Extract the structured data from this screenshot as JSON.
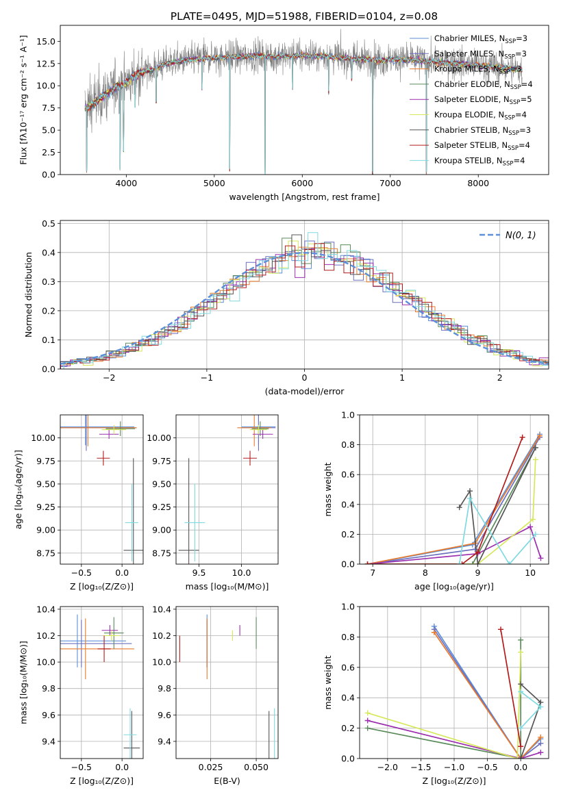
{
  "figure": {
    "title": "PLATE=0495, MJD=51988, FIBERID=0104, z=0.08"
  },
  "colors": {
    "Chabrier MILES": "#5b8fd9",
    "Salpeter MILES": "#6a6fc0",
    "Kroupa MILES": "#ea7a2c",
    "Chabrier ELODIE": "#5a8a5a",
    "Salpeter ELODIE": "#9b2fae",
    "Kroupa ELODIE": "#d6e85a",
    "Chabrier STELIB": "#555555",
    "Salpeter STELIB": "#b31b1b",
    "Kroupa STELIB": "#7fd9e0",
    "data": "#7f7f7f",
    "normal": "#5b8fd9",
    "grid": "#b0b0b0"
  },
  "chart_data": [
    {
      "id": "spectrum",
      "type": "line",
      "xlabel": "wavelength [Angstrom, rest frame]",
      "ylabel": "Flux [fλ10⁻¹⁷ erg cm⁻² s⁻¹ A⁻¹]",
      "xlim": [
        3250,
        8800
      ],
      "ylim": [
        0,
        16.8
      ],
      "xticks": [
        4000,
        5000,
        6000,
        7000,
        8000
      ],
      "yticks": [
        0.0,
        2.5,
        5.0,
        7.5,
        10.0,
        12.5,
        15.0
      ],
      "grid": false,
      "legend_position": "right",
      "legend": [
        {
          "model": "Chabrier MILES",
          "label": "Chabrier MILES, N",
          "sub": "SSP",
          "n": "=3"
        },
        {
          "model": "Salpeter MILES",
          "label": "Salpeter MILES, N",
          "sub": "SSP",
          "n": "=3"
        },
        {
          "model": "Kroupa MILES",
          "label": "Kroupa MILES, N",
          "sub": "SSP",
          "n": "=3"
        },
        {
          "model": "Chabrier ELODIE",
          "label": "Chabrier ELODIE, N",
          "sub": "SSP",
          "n": "=4"
        },
        {
          "model": "Salpeter ELODIE",
          "label": "Salpeter ELODIE, N",
          "sub": "SSP",
          "n": "=5"
        },
        {
          "model": "Kroupa ELODIE",
          "label": "Kroupa ELODIE, N",
          "sub": "SSP",
          "n": "=4"
        },
        {
          "model": "Chabrier STELIB",
          "label": "Chabrier STELIB, N",
          "sub": "SSP",
          "n": "=3"
        },
        {
          "model": "Salpeter STELIB",
          "label": "Salpeter STELIB, N",
          "sub": "SSP",
          "n": "=4"
        },
        {
          "model": "Kroupa STELIB",
          "label": "Kroupa STELIB, N",
          "sub": "SSP",
          "n": "=4"
        }
      ],
      "continuum": [
        [
          3530,
          7.5
        ],
        [
          3600,
          7.8
        ],
        [
          3700,
          8.6
        ],
        [
          3800,
          9.2
        ],
        [
          3900,
          10.0
        ],
        [
          4000,
          10.3
        ],
        [
          4100,
          11.2
        ],
        [
          4200,
          11.6
        ],
        [
          4300,
          11.8
        ],
        [
          4400,
          12.3
        ],
        [
          4500,
          12.6
        ],
        [
          4700,
          12.9
        ],
        [
          4900,
          13.1
        ],
        [
          5100,
          13.2
        ],
        [
          5300,
          13.3
        ],
        [
          5500,
          13.4
        ],
        [
          5700,
          13.3
        ],
        [
          5900,
          13.4
        ],
        [
          6100,
          13.4
        ],
        [
          6300,
          13.3
        ],
        [
          6500,
          13.1
        ],
        [
          6700,
          13.0
        ],
        [
          6900,
          12.9
        ],
        [
          7100,
          13.0
        ],
        [
          7300,
          12.9
        ],
        [
          7500,
          12.7
        ],
        [
          7800,
          12.5
        ],
        [
          8100,
          12.2
        ],
        [
          8400,
          11.9
        ],
        [
          8500,
          11.8
        ]
      ],
      "dips": [
        [
          3550,
          0.2
        ],
        [
          3930,
          0.5
        ],
        [
          3968,
          2.5
        ],
        [
          4102,
          7.5
        ],
        [
          4340,
          8.0
        ],
        [
          4861,
          9.5
        ],
        [
          5175,
          0.3
        ],
        [
          5577,
          0.0
        ],
        [
          5890,
          9.5
        ],
        [
          6300,
          9.0
        ],
        [
          6563,
          10.5
        ],
        [
          6800,
          0.0
        ],
        [
          7410,
          0.0
        ]
      ]
    },
    {
      "id": "residuals",
      "type": "line",
      "xlabel": "(data-model)/error",
      "ylabel": "Normed distribution",
      "xlim": [
        -2.5,
        2.5
      ],
      "ylim": [
        0,
        0.51
      ],
      "xticks": [
        -2,
        -1,
        0,
        1,
        2
      ],
      "yticks": [
        0.0,
        0.1,
        0.2,
        0.3,
        0.4,
        0.5
      ],
      "grid": true,
      "legend_position": "top-right",
      "legend_label": "N(0, 1)"
    },
    {
      "id": "age-vs-Z",
      "type": "scatter",
      "xlabel": "Z [log₁₀(Z/Z⊙)]",
      "ylabel": "age  [log₁₀(age/yr)]",
      "xlim": [
        -0.76,
        0.26
      ],
      "ylim": [
        8.63,
        10.25
      ],
      "xticks": [
        -0.5,
        0.0
      ],
      "yticks": [
        8.75,
        9.0,
        9.25,
        9.5,
        9.75,
        10.0
      ],
      "grid": true,
      "points": [
        {
          "model": "Chabrier MILES",
          "x": -0.45,
          "y": 10.12,
          "xerr": 0.6,
          "yerr": 0.2
        },
        {
          "model": "Salpeter MILES",
          "x": -0.44,
          "y": 10.11,
          "xerr": 0.62,
          "yerr": 0.25
        },
        {
          "model": "Kroupa MILES",
          "x": -0.42,
          "y": 10.11,
          "xerr": 0.6,
          "yerr": 0.2
        },
        {
          "model": "Chabrier ELODIE",
          "x": -0.02,
          "y": 10.1,
          "xerr": 0.18,
          "yerr": 0.08
        },
        {
          "model": "Salpeter ELODIE",
          "x": -0.16,
          "y": 10.04,
          "xerr": 0.12,
          "yerr": 0.05
        },
        {
          "model": "Kroupa ELODIE",
          "x": -0.1,
          "y": 10.09,
          "xerr": 0.15,
          "yerr": 0.05
        },
        {
          "model": "Chabrier STELIB",
          "x": 0.14,
          "y": 8.78,
          "xerr": 0.12,
          "yerr": 1.0
        },
        {
          "model": "Salpeter STELIB",
          "x": -0.23,
          "y": 9.78,
          "xerr": 0.08,
          "yerr": 0.08
        },
        {
          "model": "Kroupa STELIB",
          "x": 0.12,
          "y": 9.08,
          "xerr": 0.08,
          "yerr": 0.42
        }
      ]
    },
    {
      "id": "age-vs-mass",
      "type": "scatter",
      "xlabel": "mass [log₁₀(M/M⊙)]",
      "ylabel": "",
      "xlim": [
        9.23,
        10.43
      ],
      "ylim": [
        8.63,
        10.25
      ],
      "xticks": [
        9.5,
        10.0
      ],
      "yticks": [
        8.75,
        9.0,
        9.25,
        9.5,
        9.75,
        10.0
      ],
      "grid": true,
      "points": [
        {
          "model": "Chabrier MILES",
          "x": 10.2,
          "y": 10.12,
          "xerr": 0.2,
          "yerr": 0.2
        },
        {
          "model": "Salpeter MILES",
          "x": 10.2,
          "y": 10.11,
          "xerr": 0.2,
          "yerr": 0.25
        },
        {
          "model": "Kroupa MILES",
          "x": 10.15,
          "y": 10.11,
          "xerr": 0.2,
          "yerr": 0.2
        },
        {
          "model": "Chabrier ELODIE",
          "x": 10.22,
          "y": 10.1,
          "xerr": 0.1,
          "yerr": 0.08
        },
        {
          "model": "Salpeter ELODIE",
          "x": 10.25,
          "y": 10.04,
          "xerr": 0.12,
          "yerr": 0.05
        },
        {
          "model": "Kroupa ELODIE",
          "x": 10.2,
          "y": 10.09,
          "xerr": 0.1,
          "yerr": 0.05
        },
        {
          "model": "Chabrier STELIB",
          "x": 9.38,
          "y": 8.78,
          "xerr": 0.12,
          "yerr": 1.0
        },
        {
          "model": "Salpeter STELIB",
          "x": 10.1,
          "y": 9.78,
          "xerr": 0.08,
          "yerr": 0.08
        },
        {
          "model": "Kroupa STELIB",
          "x": 9.45,
          "y": 9.08,
          "xerr": 0.12,
          "yerr": 0.42
        }
      ]
    },
    {
      "id": "weight-vs-age",
      "type": "line",
      "xlabel": "age  [log₁₀(age/yr)]",
      "ylabel": "mass weight",
      "xlim": [
        6.75,
        10.35
      ],
      "ylim": [
        0,
        1.0
      ],
      "xticks": [
        7,
        8,
        9,
        10
      ],
      "yticks": [
        0.0,
        0.2,
        0.4,
        0.6,
        0.8,
        1.0
      ],
      "grid": true,
      "series": [
        {
          "model": "Chabrier MILES",
          "x": [
            6.9,
            8.9,
            10.18
          ],
          "y": [
            0.0,
            0.13,
            0.87
          ]
        },
        {
          "model": "Salpeter MILES",
          "x": [
            6.9,
            8.95,
            10.18
          ],
          "y": [
            0.0,
            0.1,
            0.85
          ]
        },
        {
          "model": "Kroupa MILES",
          "x": [
            6.9,
            8.95,
            10.18
          ],
          "y": [
            0.0,
            0.14,
            0.86
          ]
        },
        {
          "model": "Chabrier ELODIE",
          "x": [
            6.9,
            8.9,
            10.1
          ],
          "y": [
            0.0,
            0.0,
            0.78
          ]
        },
        {
          "model": "Salpeter ELODIE",
          "x": [
            6.9,
            9.0,
            10.0,
            10.2
          ],
          "y": [
            0.0,
            0.07,
            0.25,
            0.04
          ]
        },
        {
          "model": "Kroupa ELODIE",
          "x": [
            6.9,
            9.0,
            10.05,
            10.1
          ],
          "y": [
            0.0,
            0.0,
            0.3,
            0.7
          ]
        },
        {
          "model": "Chabrier STELIB",
          "x": [
            8.65,
            8.85,
            9.0,
            10.1
          ],
          "y": [
            0.38,
            0.49,
            0.0,
            0.78
          ]
        },
        {
          "model": "Salpeter STELIB",
          "x": [
            6.9,
            8.7,
            9.0,
            9.85
          ],
          "y": [
            0.0,
            0.0,
            0.08,
            0.85
          ]
        },
        {
          "model": "Kroupa STELIB",
          "x": [
            8.65,
            8.85,
            9.6,
            10.1
          ],
          "y": [
            0.0,
            0.44,
            0.0,
            0.2
          ]
        }
      ]
    },
    {
      "id": "mass-vs-Z",
      "type": "scatter",
      "xlabel": "Z [log₁₀(Z/Z⊙)]",
      "ylabel": "mass [log₁₀(M/M⊙)]",
      "xlim": [
        -0.76,
        0.26
      ],
      "ylim": [
        9.27,
        10.42
      ],
      "xticks": [
        -0.5,
        0.0
      ],
      "yticks": [
        9.4,
        9.6,
        9.8,
        10.0,
        10.2,
        10.4
      ],
      "grid": true,
      "points": [
        {
          "model": "Chabrier MILES",
          "x": -0.55,
          "y": 10.16,
          "xerr": 0.6,
          "yerr": 0.2
        },
        {
          "model": "Salpeter MILES",
          "x": -0.5,
          "y": 10.14,
          "xerr": 0.62,
          "yerr": 0.18
        },
        {
          "model": "Kroupa MILES",
          "x": -0.45,
          "y": 10.1,
          "xerr": 0.6,
          "yerr": 0.23
        },
        {
          "model": "Chabrier ELODIE",
          "x": -0.1,
          "y": 10.22,
          "xerr": 0.12,
          "yerr": 0.12
        },
        {
          "model": "Salpeter ELODIE",
          "x": -0.15,
          "y": 10.24,
          "xerr": 0.1,
          "yerr": 0.04
        },
        {
          "model": "Kroupa ELODIE",
          "x": -0.13,
          "y": 10.2,
          "xerr": 0.1,
          "yerr": 0.04
        },
        {
          "model": "Chabrier STELIB",
          "x": 0.12,
          "y": 9.35,
          "xerr": 0.1,
          "yerr": 0.28
        },
        {
          "model": "Salpeter STELIB",
          "x": -0.22,
          "y": 10.1,
          "xerr": 0.08,
          "yerr": 0.1
        },
        {
          "model": "Kroupa STELIB",
          "x": 0.1,
          "y": 9.45,
          "xerr": 0.08,
          "yerr": 0.2
        }
      ]
    },
    {
      "id": "mass-vs-EBV",
      "type": "scatter",
      "xlabel": "E(B-V)",
      "ylabel": "",
      "xlim": [
        0.006,
        0.062
      ],
      "ylim": [
        9.27,
        10.42
      ],
      "xticks": [
        0.025,
        0.05
      ],
      "yticks": [
        9.4,
        9.6,
        9.8,
        10.0,
        10.2,
        10.4
      ],
      "grid": true,
      "points": [
        {
          "model": "Chabrier MILES",
          "x": 0.023,
          "y": 10.16,
          "xerr": 0,
          "yerr": 0.2
        },
        {
          "model": "Salpeter MILES",
          "x": 0.023,
          "y": 10.14,
          "xerr": 0,
          "yerr": 0.18
        },
        {
          "model": "Kroupa MILES",
          "x": 0.023,
          "y": 10.1,
          "xerr": 0,
          "yerr": 0.23
        },
        {
          "model": "Chabrier ELODIE",
          "x": 0.05,
          "y": 10.22,
          "xerr": 0,
          "yerr": 0.12
        },
        {
          "model": "Salpeter ELODIE",
          "x": 0.041,
          "y": 10.24,
          "xerr": 0,
          "yerr": 0.04
        },
        {
          "model": "Kroupa ELODIE",
          "x": 0.037,
          "y": 10.2,
          "xerr": 0,
          "yerr": 0.04
        },
        {
          "model": "Chabrier STELIB",
          "x": 0.057,
          "y": 9.35,
          "xerr": 0,
          "yerr": 0.28
        },
        {
          "model": "Salpeter STELIB",
          "x": 0.008,
          "y": 10.1,
          "xerr": 0,
          "yerr": 0.1
        },
        {
          "model": "Kroupa STELIB",
          "x": 0.06,
          "y": 9.45,
          "xerr": 0,
          "yerr": 0.2
        }
      ]
    },
    {
      "id": "weight-vs-Z",
      "type": "line",
      "xlabel": "Z [log₁₀(Z/Z⊙)]",
      "ylabel": "mass weight",
      "xlim": [
        -2.42,
        0.42
      ],
      "ylim": [
        0,
        1.0
      ],
      "xticks": [
        -2.0,
        -1.5,
        -1.0,
        -0.5,
        0.0
      ],
      "yticks": [
        0.0,
        0.2,
        0.4,
        0.6,
        0.8,
        1.0
      ],
      "grid": true,
      "series": [
        {
          "model": "Chabrier MILES",
          "x": [
            -1.3,
            0.0,
            0.3
          ],
          "y": [
            0.87,
            0.0,
            0.13
          ]
        },
        {
          "model": "Salpeter MILES",
          "x": [
            -1.3,
            0.0,
            0.3
          ],
          "y": [
            0.85,
            0.0,
            0.1
          ]
        },
        {
          "model": "Kroupa MILES",
          "x": [
            -1.3,
            0.0,
            0.3
          ],
          "y": [
            0.83,
            0.0,
            0.14
          ]
        },
        {
          "model": "Chabrier ELODIE",
          "x": [
            -2.3,
            0.0,
            0.0
          ],
          "y": [
            0.2,
            0.0,
            0.78
          ]
        },
        {
          "model": "Salpeter ELODIE",
          "x": [
            -2.3,
            0.0,
            0.3
          ],
          "y": [
            0.25,
            0.0,
            0.04
          ]
        },
        {
          "model": "Kroupa ELODIE",
          "x": [
            -2.3,
            -0.05,
            0.0
          ],
          "y": [
            0.3,
            0.0,
            0.7
          ]
        },
        {
          "model": "Chabrier STELIB",
          "x": [
            0.0,
            0.3,
            0.0
          ],
          "y": [
            0.49,
            0.37,
            0.0
          ]
        },
        {
          "model": "Salpeter STELIB",
          "x": [
            -0.3,
            0.0
          ],
          "y": [
            0.85,
            0.08
          ]
        },
        {
          "model": "Kroupa STELIB",
          "x": [
            0.0,
            0.3,
            0.0
          ],
          "y": [
            0.2,
            0.34,
            0.44
          ]
        }
      ]
    }
  ]
}
